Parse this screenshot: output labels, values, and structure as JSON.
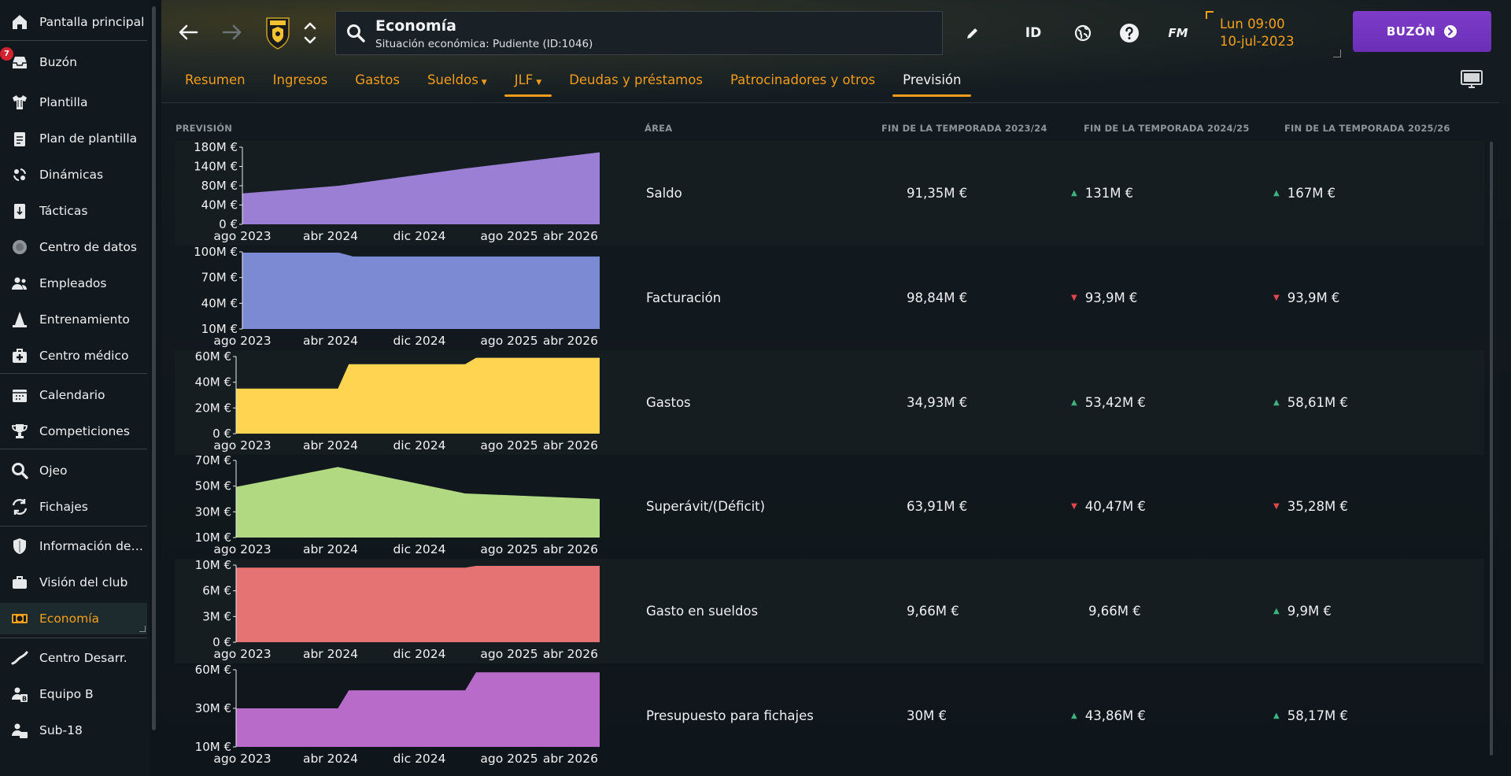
{
  "sidebar": {
    "items": [
      {
        "label": "Pantalla principal",
        "icon": "home-icon"
      },
      {
        "label": "Buzón",
        "icon": "inbox-icon",
        "badge": "7"
      },
      {
        "label": "Plantilla",
        "icon": "shirt-icon"
      },
      {
        "label": "Plan de plantilla",
        "icon": "clipboard-icon"
      },
      {
        "label": "Dinámicas",
        "icon": "dynamics-icon"
      },
      {
        "label": "Tácticas",
        "icon": "tactics-icon"
      },
      {
        "label": "Centro de datos",
        "icon": "data-hub-icon"
      },
      {
        "label": "Empleados",
        "icon": "staff-icon"
      },
      {
        "label": "Entrenamiento",
        "icon": "training-cone-icon"
      },
      {
        "label": "Centro médico",
        "icon": "medical-kit-icon"
      },
      {
        "label": "Calendario",
        "icon": "calendar-icon"
      },
      {
        "label": "Competiciones",
        "icon": "trophy-icon"
      },
      {
        "label": "Ojeo",
        "icon": "magnifier-icon"
      },
      {
        "label": "Fichajes",
        "icon": "transfers-icon"
      },
      {
        "label": "Información del club",
        "icon": "shield-icon"
      },
      {
        "label": "Visión del club",
        "icon": "briefcase-icon"
      },
      {
        "label": "Economía",
        "icon": "money-icon",
        "active": true
      },
      {
        "label": "Centro Desarr.",
        "icon": "development-icon"
      },
      {
        "label": "Equipo B",
        "icon": "team-b-icon"
      },
      {
        "label": "Sub-18",
        "icon": "under-18-icon"
      }
    ]
  },
  "header": {
    "title": "Economía",
    "subtitle": "Situación económica: Pudiente (ID:1046)",
    "id_label": "ID",
    "fm_label": "FM",
    "date_day": "Lun 09:00",
    "date_date": "10-jul-2023",
    "inbox_label": "BUZÓN"
  },
  "tabs": [
    {
      "label": "Resumen"
    },
    {
      "label": "Ingresos"
    },
    {
      "label": "Gastos"
    },
    {
      "label": "Sueldos",
      "dropdown": true
    },
    {
      "label": "JLF",
      "dropdown": true
    },
    {
      "label": "Deudas y préstamos"
    },
    {
      "label": "Patrocinadores y otros"
    },
    {
      "label": "Previsión",
      "active": true
    }
  ],
  "table": {
    "headers": {
      "forecast": "PREVISIÓN",
      "area": "ÁREA",
      "season1": "FIN DE LA TEMPORADA 2023/24",
      "season2": "FIN DE LA TEMPORADA 2024/25",
      "season3": "FIN DE LA TEMPORADA 2025/26"
    },
    "rows": [
      {
        "area": "Saldo",
        "v1": "91,35M €",
        "v2": "131M €",
        "t2": "up",
        "v3": "167M €",
        "t3": "up"
      },
      {
        "area": "Facturación",
        "v1": "98,84M €",
        "v2": "93,9M €",
        "t2": "down",
        "v3": "93,9M €",
        "t3": "down"
      },
      {
        "area": "Gastos",
        "v1": "34,93M €",
        "v2": "53,42M €",
        "t2": "up",
        "v3": "58,61M €",
        "t3": "up"
      },
      {
        "area": "Superávit/(Déficit)",
        "v1": "63,91M €",
        "v2": "40,47M €",
        "t2": "down",
        "v3": "35,28M €",
        "t3": "down"
      },
      {
        "area": "Gasto en sueldos",
        "v1": "9,66M €",
        "v2": "9,66M €",
        "t2": "none",
        "v3": "9,9M €",
        "t3": "up"
      },
      {
        "area": "Presupuesto para fichajes",
        "v1": "30M €",
        "v2": "43,86M €",
        "t2": "up",
        "v3": "58,17M €",
        "t3": "up"
      }
    ]
  },
  "chart_data": [
    {
      "type": "area",
      "color": "#9b7fd4",
      "x": [
        "ago 2023",
        "abr 2024",
        "dic 2024",
        "ago 2025",
        "abr 2026"
      ],
      "yticks": [
        "180M €",
        "140M €",
        "80M €",
        "40M €",
        "0 €"
      ],
      "ylim": [
        0,
        180
      ],
      "points": [
        [
          0,
          72
        ],
        [
          0.27,
          90
        ],
        [
          0.62,
          130
        ],
        [
          1,
          168
        ]
      ]
    },
    {
      "type": "area",
      "color": "#7b8ad2",
      "x": [
        "ago 2023",
        "abr 2024",
        "dic 2024",
        "ago 2025",
        "abr 2026"
      ],
      "yticks": [
        "100M €",
        "70M €",
        "40M €",
        "10M €"
      ],
      "ylim": [
        0,
        100
      ],
      "points": [
        [
          0,
          99
        ],
        [
          0.27,
          99
        ],
        [
          0.31,
          94
        ],
        [
          1,
          94
        ]
      ]
    },
    {
      "type": "area",
      "color": "#ffd451",
      "x": [
        "ago 2023",
        "abr 2024",
        "dic 2024",
        "ago 2025",
        "abr 2026"
      ],
      "yticks": [
        "60M €",
        "40M €",
        "20M €",
        "0 €"
      ],
      "ylim": [
        0,
        60
      ],
      "points": [
        [
          0,
          35
        ],
        [
          0.28,
          35
        ],
        [
          0.31,
          54
        ],
        [
          0.63,
          54
        ],
        [
          0.66,
          59
        ],
        [
          1,
          59
        ]
      ]
    },
    {
      "type": "area",
      "color": "#b1d982",
      "x": [
        "ago 2023",
        "abr 2024",
        "dic 2024",
        "ago 2025",
        "abr 2026"
      ],
      "yticks": [
        "70M €",
        "50M €",
        "30M €",
        "10M €"
      ],
      "ylim": [
        0,
        70
      ],
      "points": [
        [
          0,
          46
        ],
        [
          0.28,
          64
        ],
        [
          0.63,
          40
        ],
        [
          1,
          35
        ]
      ]
    },
    {
      "type": "area",
      "color": "#e57373",
      "x": [
        "ago 2023",
        "abr 2024",
        "dic 2024",
        "ago 2025",
        "abr 2026"
      ],
      "yticks": [
        "10M €",
        "6M €",
        "3M €",
        "0 €"
      ],
      "ylim": [
        0,
        10
      ],
      "points": [
        [
          0,
          9.66
        ],
        [
          0.63,
          9.66
        ],
        [
          0.66,
          9.9
        ],
        [
          1,
          9.9
        ]
      ]
    },
    {
      "type": "area",
      "color": "#b96bc9",
      "x": [
        "ago 2023",
        "abr 2024",
        "dic 2024",
        "ago 2025",
        "abr 2026"
      ],
      "yticks": [
        "60M €",
        "30M €",
        "10M €"
      ],
      "ylim": [
        0,
        60
      ],
      "points": [
        [
          0,
          30
        ],
        [
          0.28,
          30
        ],
        [
          0.31,
          44
        ],
        [
          0.63,
          44
        ],
        [
          0.66,
          58
        ],
        [
          1,
          58
        ]
      ]
    }
  ]
}
